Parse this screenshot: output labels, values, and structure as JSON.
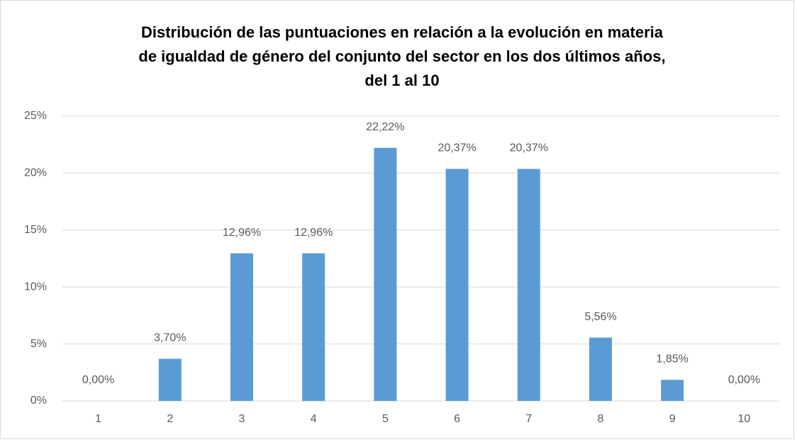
{
  "chart_data": {
    "type": "bar",
    "title": [
      "Distribución de las puntuaciones en relación a la evolución en materia",
      "de igualdad de género del conjunto del sector en los dos últimos años,",
      "del 1 al 10"
    ],
    "categories": [
      "1",
      "2",
      "3",
      "4",
      "5",
      "6",
      "7",
      "8",
      "9",
      "10"
    ],
    "values": [
      0,
      3.7,
      12.96,
      12.96,
      22.22,
      20.37,
      20.37,
      5.56,
      1.85,
      0
    ],
    "value_labels": [
      "0,00%",
      "3,70%",
      "12,96%",
      "12,96%",
      "22,22%",
      "20,37%",
      "20,37%",
      "5,56%",
      "1,85%",
      "0,00%"
    ],
    "color": "#5b9bd5",
    "ylim": [
      0,
      25
    ],
    "yticks": [
      {
        "value": 0,
        "label": "0%"
      },
      {
        "value": 5,
        "label": "5%"
      },
      {
        "value": 10,
        "label": "10%"
      },
      {
        "value": 15,
        "label": "15%"
      },
      {
        "value": 20,
        "label": "20%"
      },
      {
        "value": 25,
        "label": "25%"
      }
    ],
    "grid": true
  }
}
